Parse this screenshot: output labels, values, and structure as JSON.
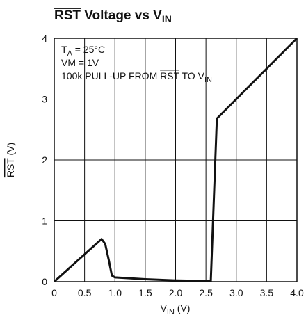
{
  "chart_data": {
    "type": "line",
    "title": [
      {
        "text": "RST",
        "style": "overline"
      },
      {
        "text": " Voltage vs V"
      },
      {
        "text": "IN",
        "style": "sub"
      }
    ],
    "x_label": [
      {
        "text": "V"
      },
      {
        "text": "IN",
        "style": "sub"
      },
      {
        "text": " (V)"
      }
    ],
    "y_label": [
      {
        "text": "RST",
        "style": "overline"
      },
      {
        "text": " (V)"
      }
    ],
    "annotations": [
      [
        {
          "text": "T"
        },
        {
          "text": "A",
          "style": "sub"
        },
        {
          "text": " = 25°C"
        }
      ],
      [
        {
          "text": "VM = 1V"
        }
      ],
      [
        {
          "text": "100k PULL-UP FROM "
        },
        {
          "text": "RST",
          "style": "overline"
        },
        {
          "text": " TO V"
        },
        {
          "text": "IN",
          "style": "sub"
        }
      ]
    ],
    "x": [
      0,
      0.4,
      0.78,
      0.84,
      0.9,
      0.95,
      1.0,
      1.5,
      2.0,
      2.58,
      2.68,
      4.0
    ],
    "series": [
      {
        "color": "#111111",
        "values": [
          0,
          0.36,
          0.7,
          0.62,
          0.35,
          0.1,
          0.07,
          0.04,
          0.02,
          0.01,
          2.68,
          4.0
        ]
      }
    ],
    "xlim": [
      0,
      4
    ],
    "ylim": [
      0,
      4
    ],
    "xticks": [
      0,
      0.5,
      {
        "value": 1,
        "label": "1.0"
      },
      1.5,
      {
        "value": 2,
        "label": "2.0"
      },
      2.5,
      {
        "value": 3,
        "label": "3.0"
      },
      3.5,
      {
        "value": 4,
        "label": "4.0"
      }
    ],
    "yticks": [
      0,
      1,
      2,
      3,
      4
    ],
    "grid": true
  }
}
